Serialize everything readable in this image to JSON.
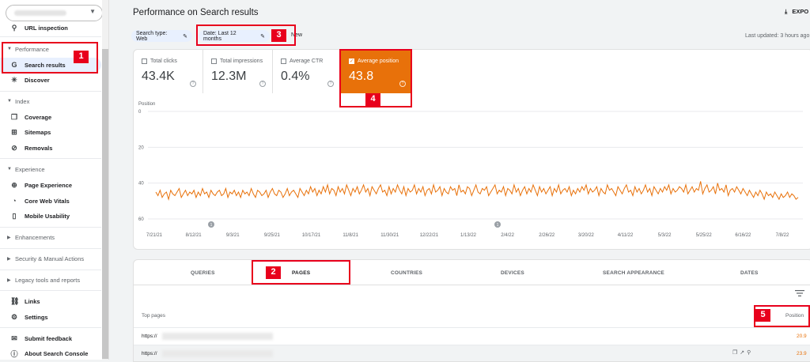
{
  "sidebar": {
    "items": [
      {
        "id": "url-inspection",
        "label": "URL inspection",
        "icon": "search-icon"
      },
      {
        "id": "performance-header",
        "label": "Performance"
      },
      {
        "id": "search-results",
        "label": "Search results",
        "icon": "google-g-icon"
      },
      {
        "id": "discover",
        "label": "Discover",
        "icon": "asterisk-icon"
      },
      {
        "id": "index-header",
        "label": "Index"
      },
      {
        "id": "coverage",
        "label": "Coverage",
        "icon": "file-copy-icon"
      },
      {
        "id": "sitemaps",
        "label": "Sitemaps",
        "icon": "sitemap-icon"
      },
      {
        "id": "removals",
        "label": "Removals",
        "icon": "eye-off-icon"
      },
      {
        "id": "experience-header",
        "label": "Experience"
      },
      {
        "id": "page-experience",
        "label": "Page Experience",
        "icon": "circle-plus-icon"
      },
      {
        "id": "core-web-vitals",
        "label": "Core Web Vitals",
        "icon": "gauge-icon"
      },
      {
        "id": "mobile-usability",
        "label": "Mobile Usability",
        "icon": "phone-icon"
      },
      {
        "id": "enhancements",
        "label": "Enhancements"
      },
      {
        "id": "security",
        "label": "Security & Manual Actions"
      },
      {
        "id": "legacy",
        "label": "Legacy tools and reports"
      },
      {
        "id": "links",
        "label": "Links",
        "icon": "links-icon"
      },
      {
        "id": "settings",
        "label": "Settings",
        "icon": "gear-icon"
      },
      {
        "id": "submit-feedback",
        "label": "Submit feedback",
        "icon": "feedback-icon"
      },
      {
        "id": "about",
        "label": "About Search Console",
        "icon": "info-icon"
      }
    ]
  },
  "header": {
    "title": "Performance on Search results",
    "export_label": "EXPO",
    "search_type_chip": "Search type: Web",
    "date_chip": "Date: Last 12 months",
    "new_label": "New",
    "last_updated": "Last updated: 3 hours ago"
  },
  "metrics": [
    {
      "label": "Total clicks",
      "value": "43.4K",
      "checked": false
    },
    {
      "label": "Total impressions",
      "value": "12.3M",
      "checked": false
    },
    {
      "label": "Average CTR",
      "value": "0.4%",
      "checked": false
    },
    {
      "label": "Average position",
      "value": "43.8",
      "checked": true
    }
  ],
  "chart_data": {
    "type": "line",
    "title": "",
    "ylabel": "Position",
    "xlabel": "",
    "y_inverted": true,
    "ylim": [
      0,
      60
    ],
    "yticks": [
      "0",
      "20",
      "40",
      "60"
    ],
    "x_tick_labels": [
      "7/21/21",
      "8/12/21",
      "9/3/21",
      "9/25/21",
      "10/17/21",
      "11/8/21",
      "11/30/21",
      "12/22/21",
      "1/13/22",
      "2/4/22",
      "2/26/22",
      "3/20/22",
      "4/11/22",
      "5/3/22",
      "5/25/22",
      "6/16/22",
      "7/8/22"
    ],
    "annotation_markers": [
      {
        "x": "8/31/21",
        "label": "1"
      },
      {
        "x": "2/4/22",
        "label": "1"
      }
    ],
    "series": [
      {
        "color": "#e8710a",
        "y": [
          45,
          47,
          44,
          48,
          46,
          45,
          49,
          44,
          46,
          47,
          45,
          43,
          48,
          46,
          44,
          47,
          45,
          46,
          44,
          48,
          45,
          47,
          43,
          46,
          45,
          48,
          44,
          46,
          47,
          45,
          44,
          47,
          46,
          43,
          48,
          45,
          46,
          44,
          47,
          45,
          48,
          44,
          46,
          45,
          47,
          43,
          46,
          48,
          44,
          45,
          47,
          46,
          44,
          48,
          45,
          43,
          46,
          47,
          44,
          45,
          48,
          46,
          43,
          47,
          45,
          44,
          46,
          48,
          43,
          45,
          47,
          44,
          46,
          42,
          45,
          43,
          47,
          44,
          46,
          42,
          45,
          41,
          46,
          43,
          44,
          47,
          42,
          45,
          43,
          46,
          41,
          44,
          47,
          43,
          45,
          42,
          46,
          44,
          41,
          45,
          43,
          47,
          42,
          44,
          46,
          43,
          41,
          45,
          44,
          47,
          42,
          46,
          43,
          45,
          41,
          44,
          46,
          42,
          47,
          43,
          45,
          44,
          41,
          46,
          43,
          45,
          42,
          47,
          44,
          43,
          46,
          41,
          45,
          44,
          42,
          47,
          43,
          45,
          46,
          42,
          44,
          43,
          47,
          41,
          45,
          44,
          46,
          42,
          43,
          47,
          44,
          41,
          45,
          46,
          43,
          44,
          42,
          47,
          45,
          43,
          41,
          46,
          44,
          45,
          42,
          47,
          43,
          44,
          46,
          41,
          45,
          43,
          47,
          44,
          42,
          46,
          43,
          45,
          41,
          44,
          47,
          42,
          45,
          43,
          46,
          44,
          42,
          47,
          43,
          45,
          41,
          46,
          44,
          43,
          45,
          42,
          47,
          44,
          46,
          43,
          45,
          42,
          44,
          41,
          46,
          43,
          45,
          44,
          42,
          47,
          43,
          45,
          46,
          41,
          44,
          43,
          45,
          47,
          42,
          44,
          46,
          43,
          41,
          45,
          44,
          47,
          42,
          45,
          43,
          46,
          44,
          41,
          45,
          43,
          47,
          42,
          44,
          46,
          43,
          45,
          42,
          44,
          41,
          46,
          43,
          45,
          44,
          42,
          43,
          45,
          41,
          46,
          44,
          42,
          45,
          43,
          44,
          39,
          46,
          43,
          41,
          45,
          44,
          42,
          46,
          40,
          44,
          43,
          45,
          41,
          47,
          44,
          43,
          45,
          42,
          44,
          46,
          43,
          45,
          47,
          44,
          46,
          48,
          45,
          47,
          44,
          46,
          49,
          45,
          47,
          46,
          48,
          45,
          47,
          49,
          46,
          48,
          47,
          45,
          48,
          46,
          47,
          49,
          48
        ]
      }
    ]
  },
  "table": {
    "tabs": [
      "QUERIES",
      "PAGES",
      "COUNTRIES",
      "DEVICES",
      "SEARCH APPEARANCE",
      "DATES"
    ],
    "active_tab": "PAGES",
    "column_left": "Top pages",
    "column_right": "Position",
    "rows": [
      {
        "url_prefix": "https://",
        "position": "20.9"
      },
      {
        "url_prefix": "https://",
        "position": "23.9"
      }
    ]
  },
  "annotations": [
    {
      "label": "1"
    },
    {
      "label": "2"
    },
    {
      "label": "3"
    },
    {
      "label": "4"
    },
    {
      "label": "5"
    }
  ]
}
